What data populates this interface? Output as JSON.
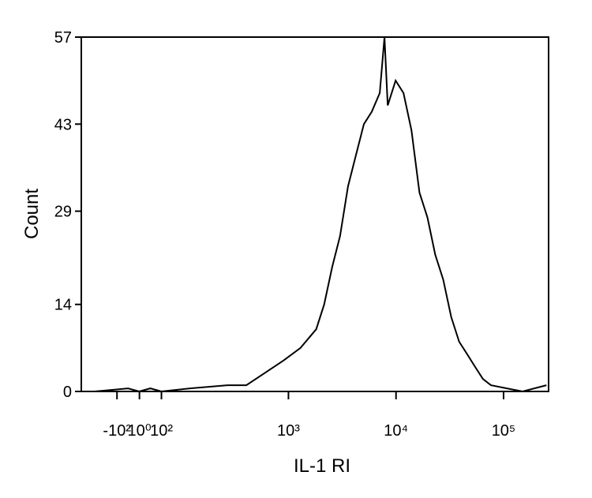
{
  "chart_data": {
    "type": "line",
    "xlabel": "IL-1 RI",
    "ylabel": "Count",
    "xscale": "biexponential",
    "xlim": [
      -191,
      262143
    ],
    "ylim": [
      0,
      57
    ],
    "xticks": [
      {
        "value": -100,
        "label": "-10²"
      },
      {
        "value": 1,
        "label": "10⁰"
      },
      {
        "value": 100,
        "label": "10²"
      },
      {
        "value": 1000,
        "label": "10³"
      },
      {
        "value": 10000,
        "label": "10⁴"
      },
      {
        "value": 100000,
        "label": "10⁵"
      }
    ],
    "yticks": [
      0,
      14,
      29,
      43,
      57
    ],
    "series": [
      {
        "color": "#000000",
        "x": [
          -150,
          -50,
          0,
          50,
          100,
          168,
          331,
          466,
          653,
          918,
          1291,
          1812,
          2148,
          2547,
          3020,
          3581,
          4239,
          5026,
          5957,
          7063,
          7816,
          8375,
          9910,
          11749,
          13932,
          16520,
          19588,
          23174,
          27479,
          32584,
          38637,
          45814,
          54200,
          64270,
          76208,
          107152,
          150314,
          250611
        ],
        "values": [
          0,
          0.5,
          0,
          0.5,
          0,
          0.5,
          1,
          1,
          3,
          5,
          7,
          10,
          14,
          20,
          25,
          33,
          38,
          43,
          45,
          48,
          57,
          46,
          50,
          48,
          42,
          32,
          28,
          22,
          18,
          12,
          8,
          6,
          4,
          2,
          1,
          0.5,
          0,
          1
        ]
      }
    ]
  }
}
